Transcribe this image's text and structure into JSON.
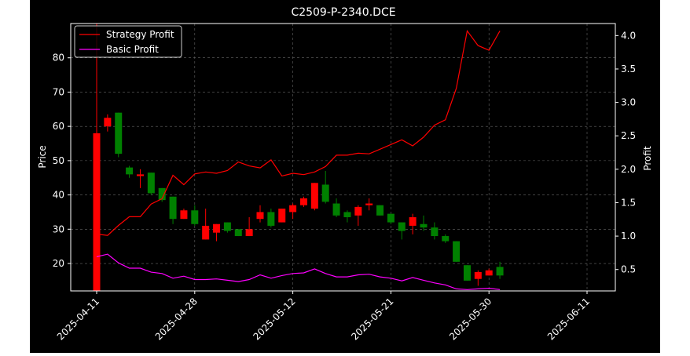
{
  "chart_data": {
    "type": "candlestick",
    "title": "C2509-P-2340.DCE",
    "ylabel_left": "Price",
    "ylabel_right": "Profit",
    "xlabel": "",
    "background": "#000000",
    "grid": true,
    "legend_placement": "top-left",
    "y_left_range": [
      12,
      90
    ],
    "y_right_range": [
      0.18,
      4.18
    ],
    "y_left_ticks": [
      20,
      30,
      40,
      50,
      60,
      70,
      80
    ],
    "y_right_ticks": [
      0.5,
      1.0,
      1.5,
      2.0,
      2.5,
      3.0,
      3.5,
      4.0
    ],
    "x_tick_labels": [
      "2025-04-11",
      "2025-04-28",
      "2025-05-12",
      "2025-05-21",
      "2025-05-30",
      "2025-06-11"
    ],
    "x_tick_indices": [
      0,
      9,
      18,
      27,
      36,
      45
    ],
    "up_color": "#ff0000",
    "down_color": "#008000",
    "candles": [
      {
        "open": 12,
        "close": 58,
        "high": 90,
        "low": 12
      },
      {
        "open": 60,
        "close": 62.5,
        "high": 63.5,
        "low": 58.5
      },
      {
        "open": 64,
        "close": 52,
        "high": 64,
        "low": 51
      },
      {
        "open": 48,
        "close": 46,
        "high": 48.5,
        "low": 45
      },
      {
        "open": 45.5,
        "close": 46,
        "high": 47.5,
        "low": 42
      },
      {
        "open": 46.5,
        "close": 40.5,
        "high": 46.5,
        "low": 40
      },
      {
        "open": 42,
        "close": 38.5,
        "high": 42,
        "low": 38
      },
      {
        "open": 39.5,
        "close": 33,
        "high": 39.5,
        "low": 31.5
      },
      {
        "open": 33,
        "close": 35.5,
        "high": 36,
        "low": 33
      },
      {
        "open": 35.5,
        "close": 31.5,
        "high": 37,
        "low": 31
      },
      {
        "open": 27,
        "close": 31,
        "high": 36,
        "low": 27
      },
      {
        "open": 29,
        "close": 31.5,
        "high": 31.5,
        "low": 26.5
      },
      {
        "open": 32,
        "close": 29.5,
        "high": 32,
        "low": 29
      },
      {
        "open": 30,
        "close": 28,
        "high": 30,
        "low": 28
      },
      {
        "open": 28,
        "close": 30,
        "high": 33.5,
        "low": 28
      },
      {
        "open": 33,
        "close": 35,
        "high": 37,
        "low": 32
      },
      {
        "open": 35,
        "close": 31,
        "high": 36,
        "low": 30.5
      },
      {
        "open": 32,
        "close": 36,
        "high": 36,
        "low": 32
      },
      {
        "open": 35,
        "close": 37,
        "high": 37.5,
        "low": 33
      },
      {
        "open": 37,
        "close": 39,
        "high": 39.5,
        "low": 36.5
      },
      {
        "open": 36,
        "close": 43.5,
        "high": 43.5,
        "low": 35.5
      },
      {
        "open": 43,
        "close": 38,
        "high": 47,
        "low": 37.5
      },
      {
        "open": 37.5,
        "close": 34,
        "high": 39,
        "low": 33.5
      },
      {
        "open": 35,
        "close": 33.5,
        "high": 35.5,
        "low": 32
      },
      {
        "open": 34,
        "close": 36.5,
        "high": 37,
        "low": 31
      },
      {
        "open": 37,
        "close": 37.5,
        "high": 39,
        "low": 35.5
      },
      {
        "open": 37,
        "close": 34,
        "high": 37,
        "low": 34
      },
      {
        "open": 34.5,
        "close": 32,
        "high": 34.5,
        "low": 31.5
      },
      {
        "open": 32,
        "close": 29.5,
        "high": 32,
        "low": 27
      },
      {
        "open": 31,
        "close": 33.5,
        "high": 34.5,
        "low": 28.5
      },
      {
        "open": 31.5,
        "close": 30.5,
        "high": 34,
        "low": 29.5
      },
      {
        "open": 30.5,
        "close": 28,
        "high": 32,
        "low": 27
      },
      {
        "open": 28,
        "close": 26.5,
        "high": 28.5,
        "low": 26
      },
      {
        "open": 26.5,
        "close": 20.5,
        "high": 26.5,
        "low": 20.5
      },
      {
        "open": 19.5,
        "close": 15,
        "high": 19.5,
        "low": 15
      },
      {
        "open": 15.5,
        "close": 17.5,
        "high": 18,
        "low": 13.5
      },
      {
        "open": 16.5,
        "close": 18,
        "high": 18.5,
        "low": 16.5
      },
      {
        "open": 19,
        "close": 16.5,
        "high": 20.5,
        "low": 15.5
      }
    ],
    "candle_x": [
      0,
      1,
      2,
      3,
      4,
      5,
      6,
      7,
      8,
      9,
      10,
      11,
      12,
      13,
      14,
      15,
      16,
      17,
      18,
      19,
      20,
      21,
      22,
      23,
      24,
      25,
      26,
      27,
      28,
      29,
      30,
      31,
      32,
      33,
      34,
      35,
      36,
      37
    ],
    "series": [
      {
        "name": "Strategy Profit",
        "color": "#ff0000",
        "axis": "right",
        "values": [
          1.03,
          1.01,
          1.16,
          1.29,
          1.29,
          1.48,
          1.56,
          1.91,
          1.77,
          1.93,
          1.96,
          1.94,
          1.98,
          2.11,
          2.05,
          2.02,
          2.14,
          1.9,
          1.94,
          1.92,
          1.96,
          2.04,
          2.21,
          2.21,
          2.24,
          2.23,
          2.3,
          2.37,
          2.44,
          2.35,
          2.48,
          2.66,
          2.74,
          3.21,
          4.07,
          3.85,
          3.78,
          4.07
        ]
      },
      {
        "name": "Basic Profit",
        "color": "#ff00ff",
        "axis": "right",
        "values": [
          0.69,
          0.73,
          0.6,
          0.52,
          0.52,
          0.46,
          0.44,
          0.37,
          0.4,
          0.35,
          0.35,
          0.36,
          0.34,
          0.32,
          0.35,
          0.42,
          0.37,
          0.41,
          0.44,
          0.45,
          0.51,
          0.44,
          0.39,
          0.39,
          0.42,
          0.43,
          0.39,
          0.37,
          0.33,
          0.38,
          0.34,
          0.3,
          0.27,
          0.21,
          0.2,
          0.21,
          0.22,
          0.2
        ]
      }
    ]
  }
}
